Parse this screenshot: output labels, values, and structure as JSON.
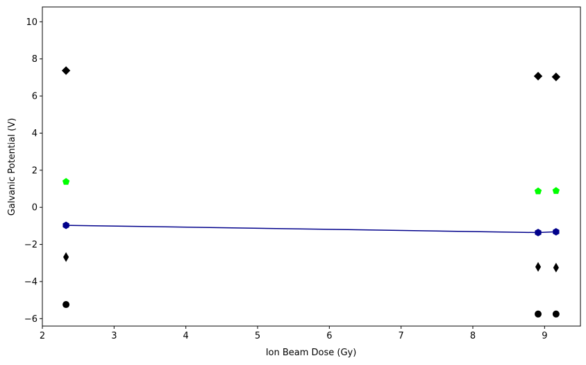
{
  "chart_data": {
    "type": "scatter",
    "xlabel": "Ion Beam Dose (Gy)",
    "ylabel": "Galvanic Potential (V)",
    "xlim": [
      2.0,
      9.5
    ],
    "ylim": [
      -6.4,
      10.8
    ],
    "xticks": [
      2,
      3,
      4,
      5,
      6,
      7,
      8,
      9
    ],
    "yticks": [
      -6,
      -4,
      -2,
      0,
      2,
      4,
      6,
      8,
      10
    ],
    "x": [
      2.33,
      8.91,
      9.16
    ],
    "series": [
      {
        "marker": "diamond",
        "color": "#000000",
        "values": [
          7.37,
          7.07,
          7.03
        ]
      },
      {
        "marker": "pentagon",
        "color": "#00ff00",
        "values": [
          1.38,
          0.87,
          0.89
        ]
      },
      {
        "marker": "hexagon",
        "color": "#00008b",
        "values": [
          -0.97,
          -1.36,
          -1.32
        ],
        "line": true
      },
      {
        "marker": "thin-diamond",
        "color": "#000000",
        "values": [
          -2.68,
          -3.21,
          -3.25
        ]
      },
      {
        "marker": "circle",
        "color": "#000000",
        "values": [
          -5.24,
          -5.75,
          -5.75
        ]
      }
    ]
  }
}
